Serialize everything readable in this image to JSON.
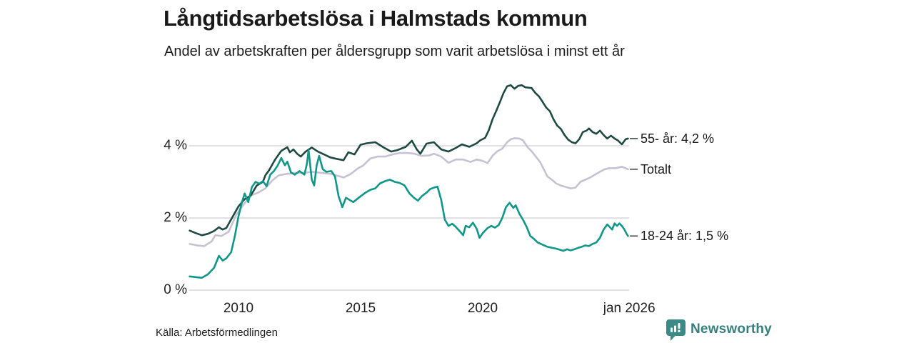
{
  "header": {
    "title": "Långtidsarbetslösa i Halmstads kommun",
    "subtitle": "Andel av arbetskraften per åldersgrupp som varit arbetslösa i minst ett år"
  },
  "footer": {
    "source": "Källa: Arbetsförmedlingen",
    "brand_name": "Newsworthy",
    "brand_color": "#3a8b87",
    "brand_icon": "newsworthy-speech-bubble-bar-chart-icon"
  },
  "chart_data": {
    "type": "line",
    "title": "Långtidsarbetslösa i Halmstads kommun",
    "subtitle": "Andel av arbetskraften per åldersgrupp som varit arbetslösa i minst ett år",
    "unit": "% av arbetskraften",
    "grid": "horizontal",
    "legend_position": "right-end-labels",
    "x_range": [
      2008.0,
      2026.05
    ],
    "x_axis": {
      "ticks": [
        {
          "label": "2010",
          "year": 2010
        },
        {
          "label": "2015",
          "year": 2015
        },
        {
          "label": "2020",
          "year": 2020
        },
        {
          "label": "jan 2026",
          "year": 2026
        }
      ]
    },
    "y_axis": {
      "ticks": [
        {
          "label": "0 %",
          "value": 0
        },
        {
          "label": "2 %",
          "value": 2
        },
        {
          "label": "4 %",
          "value": 4
        }
      ],
      "range": [
        0,
        5.9
      ],
      "gridline_color": "#d9d9de"
    },
    "series": [
      {
        "name": "Totalt",
        "end_label": "Totalt",
        "end_value_pct": 3.35,
        "color": "#c5c3d3",
        "points": [
          [
            2008.0,
            1.28
          ],
          [
            2008.3,
            1.24
          ],
          [
            2008.6,
            1.22
          ],
          [
            2008.9,
            1.35
          ],
          [
            2009.05,
            1.52
          ],
          [
            2009.3,
            1.5
          ],
          [
            2009.6,
            1.62
          ],
          [
            2009.9,
            2.08
          ],
          [
            2010.2,
            2.36
          ],
          [
            2010.5,
            2.62
          ],
          [
            2010.8,
            2.7
          ],
          [
            2011.1,
            2.82
          ],
          [
            2011.4,
            3.05
          ],
          [
            2011.65,
            3.18
          ],
          [
            2011.95,
            3.22
          ],
          [
            2012.3,
            3.25
          ],
          [
            2012.7,
            3.25
          ],
          [
            2013.0,
            3.28
          ],
          [
            2013.4,
            3.25
          ],
          [
            2013.8,
            3.22
          ],
          [
            2014.0,
            3.18
          ],
          [
            2014.3,
            3.12
          ],
          [
            2014.6,
            3.22
          ],
          [
            2014.9,
            3.38
          ],
          [
            2015.1,
            3.45
          ],
          [
            2015.4,
            3.65
          ],
          [
            2015.7,
            3.7
          ],
          [
            2016.0,
            3.7
          ],
          [
            2016.3,
            3.76
          ],
          [
            2016.6,
            3.8
          ],
          [
            2016.9,
            3.8
          ],
          [
            2017.2,
            3.78
          ],
          [
            2017.5,
            3.72
          ],
          [
            2017.8,
            3.73
          ],
          [
            2018.0,
            3.78
          ],
          [
            2018.3,
            3.7
          ],
          [
            2018.6,
            3.53
          ],
          [
            2018.9,
            3.62
          ],
          [
            2019.2,
            3.62
          ],
          [
            2019.5,
            3.55
          ],
          [
            2019.75,
            3.62
          ],
          [
            2020.0,
            3.58
          ],
          [
            2020.2,
            3.52
          ],
          [
            2020.4,
            3.72
          ],
          [
            2020.6,
            3.85
          ],
          [
            2020.8,
            3.92
          ],
          [
            2021.0,
            4.1
          ],
          [
            2021.15,
            4.18
          ],
          [
            2021.3,
            4.21
          ],
          [
            2021.5,
            4.2
          ],
          [
            2021.65,
            4.15
          ],
          [
            2021.85,
            3.95
          ],
          [
            2022.0,
            3.85
          ],
          [
            2022.2,
            3.68
          ],
          [
            2022.35,
            3.55
          ],
          [
            2022.5,
            3.35
          ],
          [
            2022.65,
            3.15
          ],
          [
            2022.85,
            3.05
          ],
          [
            2023.0,
            2.96
          ],
          [
            2023.2,
            2.9
          ],
          [
            2023.4,
            2.86
          ],
          [
            2023.6,
            2.82
          ],
          [
            2023.8,
            2.84
          ],
          [
            2024.0,
            3.0
          ],
          [
            2024.2,
            3.06
          ],
          [
            2024.4,
            3.12
          ],
          [
            2024.6,
            3.2
          ],
          [
            2024.8,
            3.28
          ],
          [
            2025.0,
            3.35
          ],
          [
            2025.2,
            3.38
          ],
          [
            2025.45,
            3.38
          ],
          [
            2025.7,
            3.42
          ],
          [
            2025.95,
            3.35
          ]
        ]
      },
      {
        "name": "55- år",
        "end_label": "55- år: 4,2 %",
        "end_value_pct": 4.2,
        "color": "#1f4a41",
        "points": [
          [
            2008.0,
            1.65
          ],
          [
            2008.25,
            1.58
          ],
          [
            2008.5,
            1.52
          ],
          [
            2008.75,
            1.56
          ],
          [
            2009.0,
            1.64
          ],
          [
            2009.2,
            1.74
          ],
          [
            2009.35,
            1.68
          ],
          [
            2009.5,
            1.72
          ],
          [
            2009.75,
            2.02
          ],
          [
            2010.0,
            2.32
          ],
          [
            2010.25,
            2.52
          ],
          [
            2010.5,
            2.62
          ],
          [
            2010.75,
            2.9
          ],
          [
            2011.0,
            3.0
          ],
          [
            2011.1,
            3.18
          ],
          [
            2011.25,
            3.32
          ],
          [
            2011.5,
            3.62
          ],
          [
            2011.75,
            3.86
          ],
          [
            2012.0,
            3.96
          ],
          [
            2012.1,
            3.82
          ],
          [
            2012.25,
            3.9
          ],
          [
            2012.4,
            3.78
          ],
          [
            2012.55,
            3.7
          ],
          [
            2012.75,
            3.84
          ],
          [
            2013.0,
            3.95
          ],
          [
            2013.25,
            3.84
          ],
          [
            2013.5,
            3.76
          ],
          [
            2013.75,
            3.68
          ],
          [
            2014.0,
            3.64
          ],
          [
            2014.3,
            3.6
          ],
          [
            2014.5,
            3.82
          ],
          [
            2014.75,
            3.76
          ],
          [
            2015.0,
            4.03
          ],
          [
            2015.25,
            4.07
          ],
          [
            2015.6,
            4.1
          ],
          [
            2015.95,
            3.95
          ],
          [
            2016.25,
            3.84
          ],
          [
            2016.5,
            3.88
          ],
          [
            2016.85,
            3.97
          ],
          [
            2017.1,
            4.14
          ],
          [
            2017.3,
            3.9
          ],
          [
            2017.45,
            3.78
          ],
          [
            2017.7,
            4.06
          ],
          [
            2018.0,
            4.1
          ],
          [
            2018.3,
            3.9
          ],
          [
            2018.6,
            3.84
          ],
          [
            2018.9,
            3.94
          ],
          [
            2019.15,
            4.04
          ],
          [
            2019.45,
            3.97
          ],
          [
            2019.75,
            4.07
          ],
          [
            2019.9,
            4.15
          ],
          [
            2020.1,
            4.22
          ],
          [
            2020.25,
            4.43
          ],
          [
            2020.4,
            4.73
          ],
          [
            2020.55,
            4.96
          ],
          [
            2020.7,
            5.2
          ],
          [
            2020.85,
            5.46
          ],
          [
            2021.0,
            5.65
          ],
          [
            2021.15,
            5.68
          ],
          [
            2021.3,
            5.58
          ],
          [
            2021.45,
            5.66
          ],
          [
            2021.6,
            5.68
          ],
          [
            2021.75,
            5.62
          ],
          [
            2022.0,
            5.6
          ],
          [
            2022.15,
            5.47
          ],
          [
            2022.3,
            5.37
          ],
          [
            2022.45,
            5.22
          ],
          [
            2022.6,
            5.06
          ],
          [
            2022.75,
            4.96
          ],
          [
            2022.9,
            4.73
          ],
          [
            2023.05,
            4.56
          ],
          [
            2023.2,
            4.47
          ],
          [
            2023.35,
            4.3
          ],
          [
            2023.5,
            4.17
          ],
          [
            2023.65,
            4.1
          ],
          [
            2023.8,
            4.07
          ],
          [
            2023.95,
            4.18
          ],
          [
            2024.1,
            4.38
          ],
          [
            2024.25,
            4.42
          ],
          [
            2024.35,
            4.48
          ],
          [
            2024.5,
            4.38
          ],
          [
            2024.65,
            4.33
          ],
          [
            2024.8,
            4.42
          ],
          [
            2024.95,
            4.3
          ],
          [
            2025.1,
            4.2
          ],
          [
            2025.25,
            4.28
          ],
          [
            2025.4,
            4.2
          ],
          [
            2025.55,
            4.14
          ],
          [
            2025.7,
            4.04
          ],
          [
            2025.85,
            4.18
          ],
          [
            2025.95,
            4.2
          ]
        ]
      },
      {
        "name": "18-24 år",
        "end_label": "18-24 år: 1,5 %",
        "end_value_pct": 1.5,
        "color": "#0f978a",
        "points": [
          [
            2008.0,
            0.38
          ],
          [
            2008.25,
            0.36
          ],
          [
            2008.5,
            0.34
          ],
          [
            2008.75,
            0.44
          ],
          [
            2009.0,
            0.62
          ],
          [
            2009.2,
            0.95
          ],
          [
            2009.35,
            0.82
          ],
          [
            2009.5,
            0.88
          ],
          [
            2009.7,
            1.05
          ],
          [
            2009.85,
            1.5
          ],
          [
            2010.0,
            2.05
          ],
          [
            2010.15,
            2.45
          ],
          [
            2010.25,
            2.68
          ],
          [
            2010.4,
            2.44
          ],
          [
            2010.55,
            2.86
          ],
          [
            2010.7,
            3.0
          ],
          [
            2010.85,
            2.95
          ],
          [
            2011.0,
            3.02
          ],
          [
            2011.15,
            2.88
          ],
          [
            2011.3,
            3.2
          ],
          [
            2011.45,
            3.3
          ],
          [
            2011.6,
            3.45
          ],
          [
            2011.75,
            3.66
          ],
          [
            2011.9,
            3.46
          ],
          [
            2012.0,
            3.56
          ],
          [
            2012.15,
            3.26
          ],
          [
            2012.3,
            3.2
          ],
          [
            2012.5,
            3.3
          ],
          [
            2012.7,
            3.2
          ],
          [
            2012.8,
            3.5
          ],
          [
            2012.87,
            3.88
          ],
          [
            2013.0,
            3.06
          ],
          [
            2013.1,
            2.9
          ],
          [
            2013.2,
            3.45
          ],
          [
            2013.3,
            3.72
          ],
          [
            2013.45,
            3.35
          ],
          [
            2013.6,
            3.28
          ],
          [
            2013.8,
            3.3
          ],
          [
            2013.95,
            3.15
          ],
          [
            2014.1,
            2.6
          ],
          [
            2014.25,
            2.3
          ],
          [
            2014.4,
            2.56
          ],
          [
            2014.55,
            2.5
          ],
          [
            2014.7,
            2.44
          ],
          [
            2014.85,
            2.52
          ],
          [
            2015.0,
            2.6
          ],
          [
            2015.2,
            2.7
          ],
          [
            2015.4,
            2.78
          ],
          [
            2015.6,
            2.82
          ],
          [
            2015.8,
            2.96
          ],
          [
            2016.0,
            3.02
          ],
          [
            2016.2,
            3.06
          ],
          [
            2016.4,
            3.0
          ],
          [
            2016.6,
            2.97
          ],
          [
            2016.8,
            2.9
          ],
          [
            2017.0,
            2.68
          ],
          [
            2017.2,
            2.55
          ],
          [
            2017.35,
            2.48
          ],
          [
            2017.5,
            2.6
          ],
          [
            2017.7,
            2.7
          ],
          [
            2017.85,
            2.8
          ],
          [
            2018.0,
            2.84
          ],
          [
            2018.15,
            2.87
          ],
          [
            2018.3,
            2.5
          ],
          [
            2018.45,
            1.95
          ],
          [
            2018.6,
            1.78
          ],
          [
            2018.75,
            1.84
          ],
          [
            2018.9,
            1.75
          ],
          [
            2019.05,
            1.64
          ],
          [
            2019.2,
            1.52
          ],
          [
            2019.3,
            1.78
          ],
          [
            2019.45,
            1.74
          ],
          [
            2019.6,
            1.87
          ],
          [
            2019.75,
            1.7
          ],
          [
            2019.87,
            1.45
          ],
          [
            2020.0,
            1.58
          ],
          [
            2020.2,
            1.72
          ],
          [
            2020.35,
            1.78
          ],
          [
            2020.5,
            1.73
          ],
          [
            2020.65,
            1.8
          ],
          [
            2020.8,
            2.0
          ],
          [
            2020.95,
            2.3
          ],
          [
            2021.1,
            2.42
          ],
          [
            2021.25,
            2.28
          ],
          [
            2021.35,
            2.35
          ],
          [
            2021.5,
            2.12
          ],
          [
            2021.65,
            1.95
          ],
          [
            2021.8,
            1.75
          ],
          [
            2021.95,
            1.5
          ],
          [
            2022.1,
            1.42
          ],
          [
            2022.25,
            1.32
          ],
          [
            2022.45,
            1.26
          ],
          [
            2022.65,
            1.2
          ],
          [
            2022.85,
            1.17
          ],
          [
            2023.0,
            1.15
          ],
          [
            2023.15,
            1.12
          ],
          [
            2023.3,
            1.09
          ],
          [
            2023.45,
            1.13
          ],
          [
            2023.6,
            1.1
          ],
          [
            2023.75,
            1.13
          ],
          [
            2023.9,
            1.17
          ],
          [
            2024.05,
            1.2
          ],
          [
            2024.2,
            1.24
          ],
          [
            2024.35,
            1.22
          ],
          [
            2024.5,
            1.28
          ],
          [
            2024.65,
            1.32
          ],
          [
            2024.8,
            1.45
          ],
          [
            2024.95,
            1.68
          ],
          [
            2025.1,
            1.82
          ],
          [
            2025.2,
            1.75
          ],
          [
            2025.3,
            1.68
          ],
          [
            2025.4,
            1.85
          ],
          [
            2025.5,
            1.78
          ],
          [
            2025.6,
            1.85
          ],
          [
            2025.7,
            1.78
          ],
          [
            2025.8,
            1.68
          ],
          [
            2025.9,
            1.55
          ],
          [
            2025.95,
            1.5
          ]
        ]
      }
    ]
  }
}
